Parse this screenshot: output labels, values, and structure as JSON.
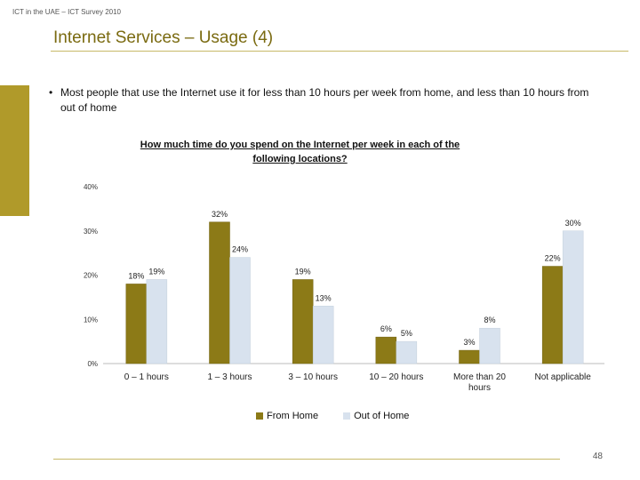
{
  "header": {
    "note": "ICT in the UAE – ICT Survey 2010"
  },
  "slide": {
    "title": "Internet Services – Usage (4)",
    "bullet": "Most people that use the Internet use it for less than 10 hours per week from home, and less than 10 hours from out of home",
    "page_number": "48"
  },
  "colors": {
    "from_home": "#8c7a17",
    "out_of_home": "#d8e2ee",
    "accent": "#b09a2a"
  },
  "chart_data": {
    "type": "bar",
    "title": "How much time do you spend on the Internet per week in each of the following locations?",
    "categories": [
      "0 – 1 hours",
      "1 – 3 hours",
      "3 – 10 hours",
      "10 – 20 hours",
      "More than 20 hours",
      "Not applicable"
    ],
    "series": [
      {
        "name": "From Home",
        "values": [
          18,
          32,
          19,
          6,
          3,
          22
        ]
      },
      {
        "name": "Out of Home",
        "values": [
          19,
          24,
          13,
          5,
          8,
          30
        ]
      }
    ],
    "value_labels": [
      [
        "18%",
        "32%",
        "19%",
        "6%",
        "3%",
        "22%"
      ],
      [
        "19%",
        "24%",
        "13%",
        "5%",
        "8%",
        "30%"
      ]
    ],
    "yticks": [
      "0%",
      "10%",
      "20%",
      "30%",
      "40%"
    ],
    "ytick_values": [
      0,
      10,
      20,
      30,
      40
    ],
    "ylim": [
      0,
      40
    ],
    "xlabel": "",
    "ylabel": "",
    "grid": false,
    "legend": "bottom"
  }
}
